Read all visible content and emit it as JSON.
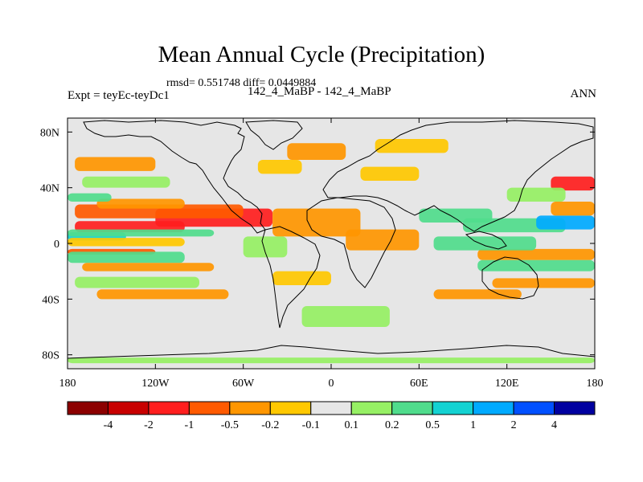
{
  "header": {
    "title": "Mean Annual Cycle (Precipitation)",
    "stats": "rmsd= 0.551748 diff= 0.0449884",
    "experiment": "Expt = teyEc-teyDc1",
    "subtitle": "142_4_MaBP - 142_4_MaBP",
    "season": "ANN"
  },
  "chart_data": {
    "type": "heatmap",
    "title": "Mean Annual Cycle (Precipitation)",
    "subtitle": "142_4_MaBP - 142_4_MaBP",
    "experiment": "Expt = teyEc-teyDc1",
    "season": "ANN",
    "rmsd": 0.551748,
    "diff": 0.0449884,
    "xlim": [
      -180,
      180
    ],
    "ylim": [
      -90,
      90
    ],
    "x_ticks": [
      {
        "value": -180,
        "label": "180"
      },
      {
        "value": -120,
        "label": "120W"
      },
      {
        "value": -60,
        "label": "60W"
      },
      {
        "value": 0,
        "label": "0"
      },
      {
        "value": 60,
        "label": "60E"
      },
      {
        "value": 120,
        "label": "120E"
      },
      {
        "value": 180,
        "label": "180"
      }
    ],
    "y_ticks": [
      {
        "value": 80,
        "label": "80N"
      },
      {
        "value": 40,
        "label": "40N"
      },
      {
        "value": 0,
        "label": "0"
      },
      {
        "value": -40,
        "label": "40S"
      },
      {
        "value": -80,
        "label": "80S"
      }
    ],
    "colorbar": {
      "colors": [
        "#8c0000",
        "#c80000",
        "#ff1e1e",
        "#ff5a00",
        "#ff9600",
        "#ffc800",
        "#e6e6e6",
        "#96f064",
        "#50dc8c",
        "#14d2d2",
        "#00aaff",
        "#0050ff",
        "#0000a0"
      ],
      "labels": [
        "-4",
        "-2",
        "-1",
        "-0.5",
        "-0.2",
        "-0.1",
        "0.1",
        "0.2",
        "0.5",
        "1",
        "2",
        "4"
      ]
    },
    "bands": [
      {
        "lon0": -175,
        "lon1": -100,
        "lat0": 8,
        "lat1": 16,
        "level": -4
      },
      {
        "lon0": -120,
        "lon1": -40,
        "lat0": 12,
        "lat1": 25,
        "level": -4
      },
      {
        "lon0": -175,
        "lon1": -60,
        "lat0": 18,
        "lat1": 28,
        "level": -3
      },
      {
        "lon0": -160,
        "lon1": -100,
        "lat0": 25,
        "lat1": 32,
        "level": -2
      },
      {
        "lon0": -40,
        "lon1": 20,
        "lat0": 5,
        "lat1": 25,
        "level": -2
      },
      {
        "lon0": 10,
        "lon1": 60,
        "lat0": -5,
        "lat1": 10,
        "level": -2
      },
      {
        "lon0": -180,
        "lon1": -140,
        "lat0": 2,
        "lat1": 8,
        "level": 3
      },
      {
        "lon0": -180,
        "lon1": -80,
        "lat0": 5,
        "lat1": 10,
        "level": 2
      },
      {
        "lon0": -180,
        "lon1": -100,
        "lat0": -2,
        "lat1": 4,
        "level": -1
      },
      {
        "lon0": -180,
        "lon1": -120,
        "lat0": -8,
        "lat1": -4,
        "level": -3
      },
      {
        "lon0": -180,
        "lon1": -100,
        "lat0": -14,
        "lat1": -6,
        "level": 2
      },
      {
        "lon0": -170,
        "lon1": -80,
        "lat0": -20,
        "lat1": -14,
        "level": -2
      },
      {
        "lon0": -175,
        "lon1": -90,
        "lat0": -32,
        "lat1": -24,
        "level": 1
      },
      {
        "lon0": -160,
        "lon1": -70,
        "lat0": -40,
        "lat1": -33,
        "level": -2
      },
      {
        "lon0": -175,
        "lon1": -120,
        "lat0": 52,
        "lat1": 62,
        "level": -2
      },
      {
        "lon0": -170,
        "lon1": -110,
        "lat0": 40,
        "lat1": 48,
        "level": 1
      },
      {
        "lon0": -180,
        "lon1": -150,
        "lat0": 30,
        "lat1": 36,
        "level": 2
      },
      {
        "lon0": -50,
        "lon1": -20,
        "lat0": 50,
        "lat1": 60,
        "level": -1
      },
      {
        "lon0": -30,
        "lon1": 10,
        "lat0": 60,
        "lat1": 72,
        "level": -2
      },
      {
        "lon0": 20,
        "lon1": 60,
        "lat0": 45,
        "lat1": 55,
        "level": -1
      },
      {
        "lon0": 60,
        "lon1": 110,
        "lat0": 15,
        "lat1": 25,
        "level": 2
      },
      {
        "lon0": 90,
        "lon1": 160,
        "lat0": 8,
        "lat1": 18,
        "level": 2
      },
      {
        "lon0": 140,
        "lon1": 180,
        "lat0": 10,
        "lat1": 20,
        "level": 4
      },
      {
        "lon0": 150,
        "lon1": 180,
        "lat0": 20,
        "lat1": 30,
        "level": -2
      },
      {
        "lon0": 150,
        "lon1": 180,
        "lat0": 38,
        "lat1": 48,
        "level": -4
      },
      {
        "lon0": 120,
        "lon1": 160,
        "lat0": 30,
        "lat1": 40,
        "level": 1
      },
      {
        "lon0": 100,
        "lon1": 180,
        "lat0": -12,
        "lat1": -4,
        "level": -2
      },
      {
        "lon0": 100,
        "lon1": 180,
        "lat0": -20,
        "lat1": -12,
        "level": 2
      },
      {
        "lon0": 70,
        "lon1": 140,
        "lat0": -5,
        "lat1": 5,
        "level": 2
      },
      {
        "lon0": 110,
        "lon1": 180,
        "lat0": -32,
        "lat1": -25,
        "level": -2
      },
      {
        "lon0": 70,
        "lon1": 130,
        "lat0": -40,
        "lat1": -33,
        "level": -2
      },
      {
        "lon0": -40,
        "lon1": 0,
        "lat0": -30,
        "lat1": -20,
        "level": -1
      },
      {
        "lon0": -20,
        "lon1": 40,
        "lat0": -60,
        "lat1": -45,
        "level": 1
      },
      {
        "lon0": -180,
        "lon1": 180,
        "lat0": -86,
        "lat1": -82,
        "level": 1
      },
      {
        "lon0": 30,
        "lon1": 80,
        "lat0": 65,
        "lat1": 75,
        "level": -1
      },
      {
        "lon0": -60,
        "lon1": -30,
        "lat0": -10,
        "lat1": 5,
        "level": 1
      }
    ]
  }
}
